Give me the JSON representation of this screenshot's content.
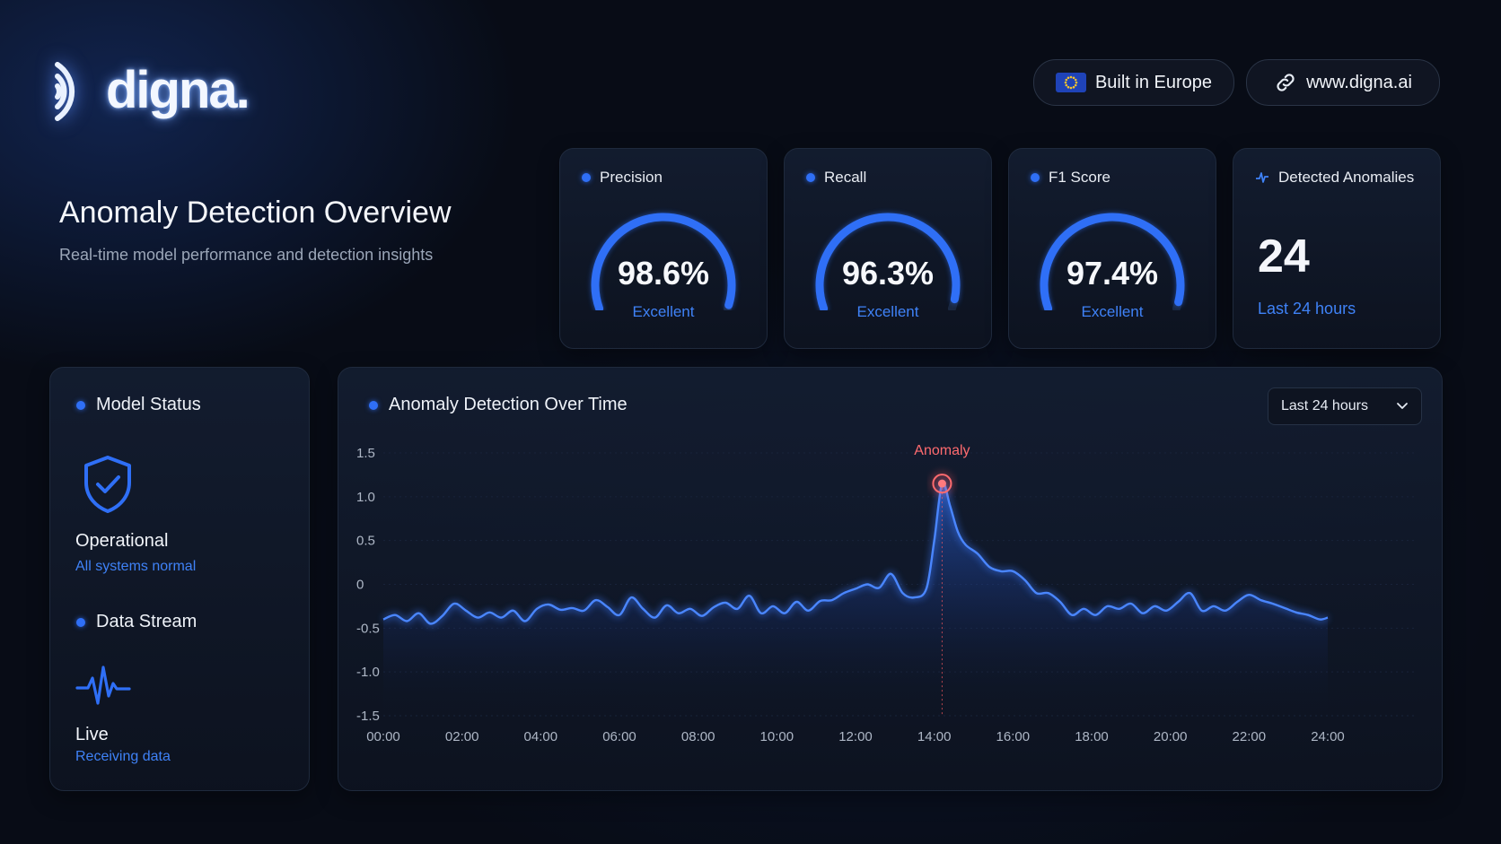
{
  "brand": {
    "name": "digna."
  },
  "header": {
    "badge_europe": "Built in Europe",
    "website": "www.digna.ai"
  },
  "page": {
    "title": "Anomaly Detection Overview",
    "subtitle": "Real-time model performance and detection insights"
  },
  "metrics": [
    {
      "title": "Precision",
      "value": "98.6%",
      "value_fraction": 0.986,
      "rating": "Excellent"
    },
    {
      "title": "Recall",
      "value": "96.3%",
      "value_fraction": 0.963,
      "rating": "Excellent"
    },
    {
      "title": "F1 Score",
      "value": "97.4%",
      "value_fraction": 0.974,
      "rating": "Excellent"
    }
  ],
  "anomalies_card": {
    "title": "Detected Anomalies",
    "count": "24",
    "period": "Last 24 hours"
  },
  "model_status": {
    "title": "Model Status",
    "state": "Operational",
    "state_detail": "All systems normal",
    "stream_title": "Data Stream",
    "stream_state": "Live",
    "stream_detail": "Receiving data"
  },
  "chart_panel": {
    "title": "Anomaly Detection Over Time",
    "range_selected": "Last 24 hours"
  },
  "colors": {
    "accent": "#2f6ff6",
    "anomaly": "#ff5a5f",
    "background": "#080c16"
  },
  "icons": {
    "brand_mark": "sound-wave-icon",
    "europe": "eu-flag-icon",
    "website": "link-icon",
    "anomalies": "pulse-icon",
    "status": "shield-check-icon",
    "stream": "heartbeat-icon",
    "select": "chevron-down-icon"
  },
  "chart_data": {
    "type": "line",
    "title": "",
    "xlabel": "",
    "ylabel": "",
    "x_ticks": [
      "00:00",
      "02:00",
      "04:00",
      "06:00",
      "08:00",
      "10:00",
      "12:00",
      "14:00",
      "16:00",
      "18:00",
      "20:00",
      "22:00",
      "24:00"
    ],
    "y_ticks": [
      "1.5",
      "1.0",
      "0.5",
      "0",
      "-0.5",
      "-1.0",
      "-1.5"
    ],
    "ylim": [
      -1.5,
      1.5
    ],
    "xlim": [
      0,
      24
    ],
    "grid": true,
    "series": [
      {
        "points": [
          [
            0.0,
            -0.4
          ],
          [
            0.3,
            -0.35
          ],
          [
            0.6,
            -0.42
          ],
          [
            0.9,
            -0.33
          ],
          [
            1.2,
            -0.45
          ],
          [
            1.5,
            -0.36
          ],
          [
            1.8,
            -0.22
          ],
          [
            2.1,
            -0.3
          ],
          [
            2.4,
            -0.38
          ],
          [
            2.7,
            -0.32
          ],
          [
            3.0,
            -0.38
          ],
          [
            3.3,
            -0.3
          ],
          [
            3.6,
            -0.42
          ],
          [
            3.9,
            -0.28
          ],
          [
            4.2,
            -0.23
          ],
          [
            4.5,
            -0.29
          ],
          [
            4.8,
            -0.27
          ],
          [
            5.1,
            -0.3
          ],
          [
            5.4,
            -0.18
          ],
          [
            5.7,
            -0.26
          ],
          [
            6.0,
            -0.35
          ],
          [
            6.3,
            -0.15
          ],
          [
            6.6,
            -0.28
          ],
          [
            6.9,
            -0.38
          ],
          [
            7.2,
            -0.24
          ],
          [
            7.5,
            -0.33
          ],
          [
            7.8,
            -0.28
          ],
          [
            8.1,
            -0.36
          ],
          [
            8.4,
            -0.26
          ],
          [
            8.7,
            -0.21
          ],
          [
            9.0,
            -0.28
          ],
          [
            9.3,
            -0.13
          ],
          [
            9.6,
            -0.33
          ],
          [
            9.9,
            -0.25
          ],
          [
            10.2,
            -0.33
          ],
          [
            10.5,
            -0.2
          ],
          [
            10.8,
            -0.3
          ],
          [
            11.1,
            -0.19
          ],
          [
            11.4,
            -0.18
          ],
          [
            11.7,
            -0.1
          ],
          [
            12.0,
            -0.05
          ],
          [
            12.3,
            0.0
          ],
          [
            12.6,
            -0.04
          ],
          [
            12.9,
            0.12
          ],
          [
            13.2,
            -0.1
          ],
          [
            13.5,
            -0.15
          ],
          [
            13.8,
            -0.05
          ],
          [
            14.0,
            0.5
          ],
          [
            14.2,
            1.15
          ],
          [
            14.4,
            0.9
          ],
          [
            14.6,
            0.6
          ],
          [
            14.8,
            0.45
          ],
          [
            15.1,
            0.35
          ],
          [
            15.4,
            0.2
          ],
          [
            15.7,
            0.15
          ],
          [
            16.0,
            0.15
          ],
          [
            16.3,
            0.05
          ],
          [
            16.6,
            -0.1
          ],
          [
            16.9,
            -0.1
          ],
          [
            17.2,
            -0.2
          ],
          [
            17.5,
            -0.35
          ],
          [
            17.8,
            -0.28
          ],
          [
            18.1,
            -0.35
          ],
          [
            18.4,
            -0.25
          ],
          [
            18.7,
            -0.28
          ],
          [
            19.0,
            -0.22
          ],
          [
            19.3,
            -0.33
          ],
          [
            19.6,
            -0.25
          ],
          [
            19.9,
            -0.3
          ],
          [
            20.2,
            -0.2
          ],
          [
            20.5,
            -0.1
          ],
          [
            20.8,
            -0.3
          ],
          [
            21.1,
            -0.25
          ],
          [
            21.4,
            -0.3
          ],
          [
            21.7,
            -0.2
          ],
          [
            22.0,
            -0.12
          ],
          [
            22.3,
            -0.18
          ],
          [
            22.6,
            -0.22
          ],
          [
            22.9,
            -0.27
          ],
          [
            23.2,
            -0.32
          ],
          [
            23.5,
            -0.35
          ],
          [
            23.8,
            -0.4
          ],
          [
            24.0,
            -0.38
          ]
        ]
      }
    ],
    "annotations": [
      {
        "label": "Anomaly",
        "x": 14.2,
        "y": 1.15
      }
    ]
  }
}
